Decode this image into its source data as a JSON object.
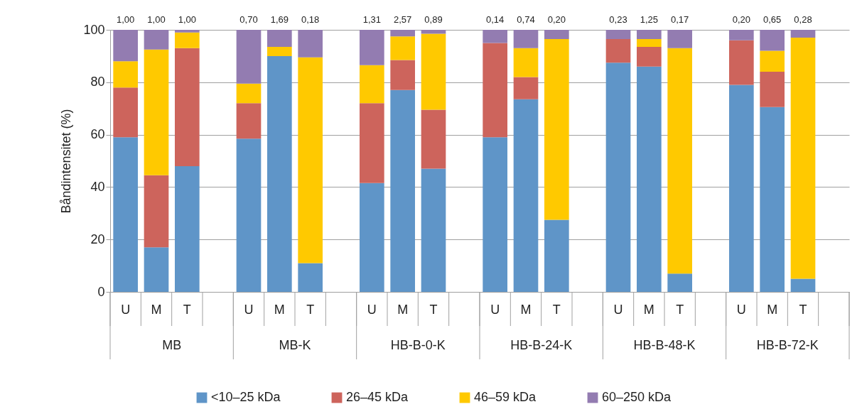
{
  "chart_data": {
    "type": "bar",
    "stacked": true,
    "ylabel": "Båndintensitet (%)",
    "categories": [
      "U",
      "M",
      "T",
      null,
      "U",
      "M",
      "T",
      null,
      "U",
      "M",
      "T",
      null,
      "U",
      "M",
      "T",
      null,
      "U",
      "M",
      "T",
      null,
      "U",
      "M",
      "T",
      null
    ],
    "series": [
      {
        "name": "<10–25 kDa",
        "color": "#5f95c8",
        "values": [
          59,
          17,
          48,
          null,
          58.5,
          90,
          11,
          null,
          41.5,
          77,
          47,
          null,
          59,
          73.5,
          27.5,
          null,
          87.5,
          86,
          7,
          null,
          79,
          70.5,
          5,
          null
        ]
      },
      {
        "name": "26–45 kDa",
        "color": "#cd645c",
        "values": [
          19,
          27.5,
          45,
          null,
          13.5,
          null,
          null,
          null,
          30.5,
          11.5,
          22.5,
          null,
          36,
          8.5,
          null,
          null,
          9,
          7.5,
          null,
          null,
          17,
          13.5,
          null,
          null
        ]
      },
      {
        "name": "46–59 kDa",
        "color": "#ffc900",
        "values": [
          10,
          48,
          6,
          null,
          7.5,
          3.5,
          78.5,
          null,
          14.5,
          9,
          29,
          null,
          null,
          11,
          69,
          null,
          null,
          3,
          86,
          null,
          null,
          8,
          92,
          null
        ]
      },
      {
        "name": "60–250 kDa",
        "color": "#937cb1",
        "values": [
          12,
          7.5,
          1,
          null,
          20.5,
          6.5,
          10.5,
          null,
          13.5,
          2.5,
          1.5,
          null,
          5,
          7,
          3.5,
          null,
          3.5,
          3.5,
          7,
          null,
          4,
          8,
          3,
          null
        ]
      }
    ],
    "annotations": [
      "MB",
      "MB-K",
      "HB-B-0-K",
      "HB-B-24-K",
      "HB-B-48-K",
      "HB-B-72-K",
      "1,00",
      "1,00",
      "1,00",
      "0,70",
      "1,69",
      "0,18",
      "1,31",
      "2,57",
      "0,89",
      "0,14",
      "0,74",
      "0,20",
      "0,23",
      "1,25",
      "0,17",
      "0,20",
      "0,65",
      "0,28"
    ],
    "ylim": [
      0,
      100
    ],
    "yticks": [
      0,
      20,
      40,
      60,
      80,
      100
    ],
    "grid": "y",
    "legend": "bottom"
  }
}
